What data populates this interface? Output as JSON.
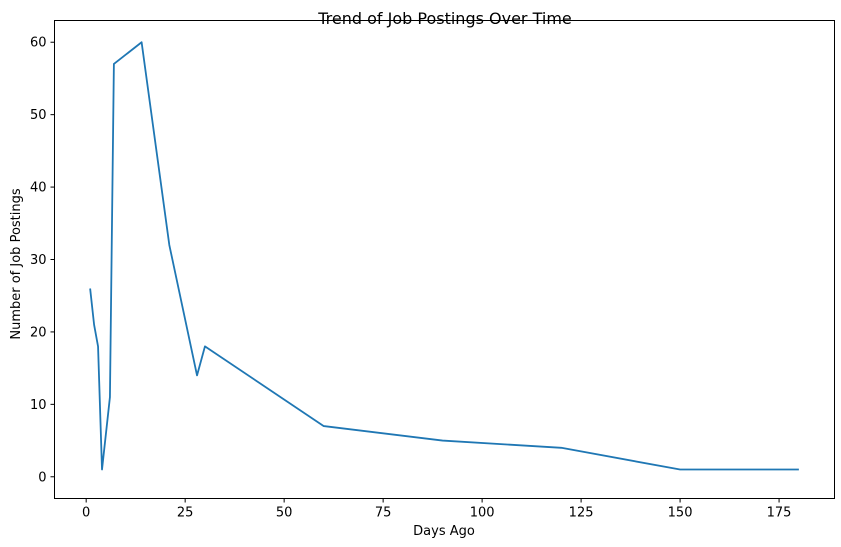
{
  "chart_data": {
    "type": "line",
    "title": "Trend of Job Postings Over Time",
    "xlabel": "Days Ago",
    "ylabel": "Number of Job Postings",
    "xlim": [
      -8,
      189
    ],
    "ylim": [
      -3,
      63
    ],
    "xticks": [
      0,
      25,
      50,
      75,
      100,
      125,
      150,
      175
    ],
    "yticks": [
      0,
      10,
      20,
      30,
      40,
      50,
      60
    ],
    "grid": false,
    "legend": "none",
    "series": [
      {
        "color": "#1f77b4",
        "x": [
          1,
          2,
          3,
          4,
          6,
          7,
          14,
          21,
          28,
          30,
          60,
          90,
          120,
          150,
          180
        ],
        "y": [
          26,
          21,
          18,
          1,
          11,
          57,
          60,
          32,
          14,
          18,
          7,
          5,
          4,
          1,
          1
        ]
      }
    ]
  }
}
